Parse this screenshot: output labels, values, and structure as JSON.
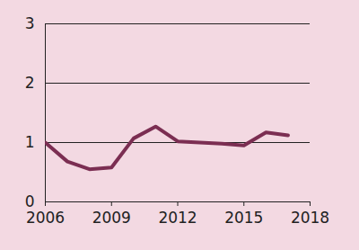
{
  "chart_data": {
    "type": "line",
    "x": [
      2006,
      2007,
      2008,
      2009,
      2010,
      2011,
      2012,
      2013,
      2014,
      2015,
      2016,
      2017
    ],
    "values": [
      1.0,
      0.68,
      0.55,
      0.58,
      1.07,
      1.27,
      1.02,
      1.0,
      0.98,
      0.95,
      1.17,
      1.12
    ],
    "color": "#7b2e52",
    "xlim": [
      2006,
      2018
    ],
    "xticks": [
      2006,
      2009,
      2012,
      2015,
      2018
    ],
    "ylim": [
      0,
      3
    ],
    "yticks": [
      0,
      1,
      2,
      3
    ],
    "grid": true
  }
}
